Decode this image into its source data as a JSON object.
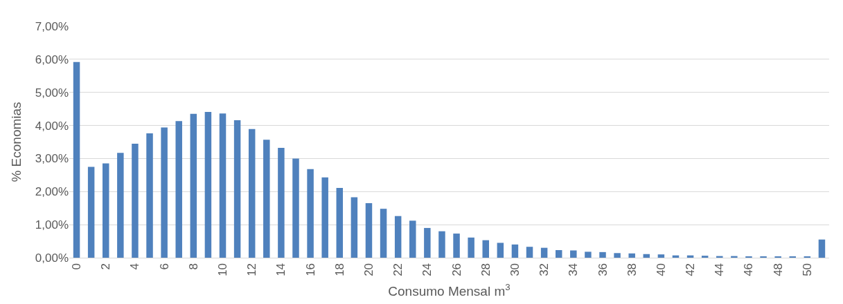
{
  "chart_data": {
    "type": "bar",
    "xlabel": "Consumo Mensal m$^{3}$",
    "ylabel": "% Economias",
    "categories": [
      "0",
      null,
      "2",
      null,
      "4",
      null,
      "6",
      null,
      "8",
      null,
      "10",
      null,
      "12",
      null,
      "14",
      null,
      "16",
      null,
      "18",
      null,
      "20",
      null,
      "22",
      null,
      "24",
      null,
      "26",
      null,
      "28",
      null,
      "30",
      null,
      "32",
      null,
      "34",
      null,
      "36",
      null,
      "38",
      null,
      "40",
      null,
      "42",
      null,
      "44",
      null,
      "46",
      null,
      "48",
      null,
      "50",
      null
    ],
    "values": [
      5.92,
      2.75,
      2.85,
      3.17,
      3.45,
      3.76,
      3.94,
      4.13,
      4.35,
      4.41,
      4.36,
      4.16,
      3.89,
      3.57,
      3.32,
      3.0,
      2.68,
      2.43,
      2.11,
      1.83,
      1.65,
      1.48,
      1.26,
      1.12,
      0.9,
      0.8,
      0.73,
      0.61,
      0.53,
      0.45,
      0.4,
      0.33,
      0.3,
      0.23,
      0.22,
      0.18,
      0.17,
      0.14,
      0.13,
      0.11,
      0.1,
      0.07,
      0.07,
      0.06,
      0.05,
      0.05,
      0.04,
      0.04,
      0.03,
      0.03,
      0.03,
      0.55
    ],
    "color": "#4f81bd",
    "ylim": [
      0,
      7
    ],
    "yticks": [
      {
        "value": 0,
        "label": "0,00%"
      },
      {
        "value": 1,
        "label": "1,00%"
      },
      {
        "value": 2,
        "label": "2,00%"
      },
      {
        "value": 3,
        "label": "3,00%"
      },
      {
        "value": 4,
        "label": "4,00%"
      },
      {
        "value": 5,
        "label": "5,00%"
      },
      {
        "value": 6,
        "label": "6,00%"
      },
      {
        "value": 7,
        "label": "7,00%"
      }
    ],
    "grid": "y"
  }
}
